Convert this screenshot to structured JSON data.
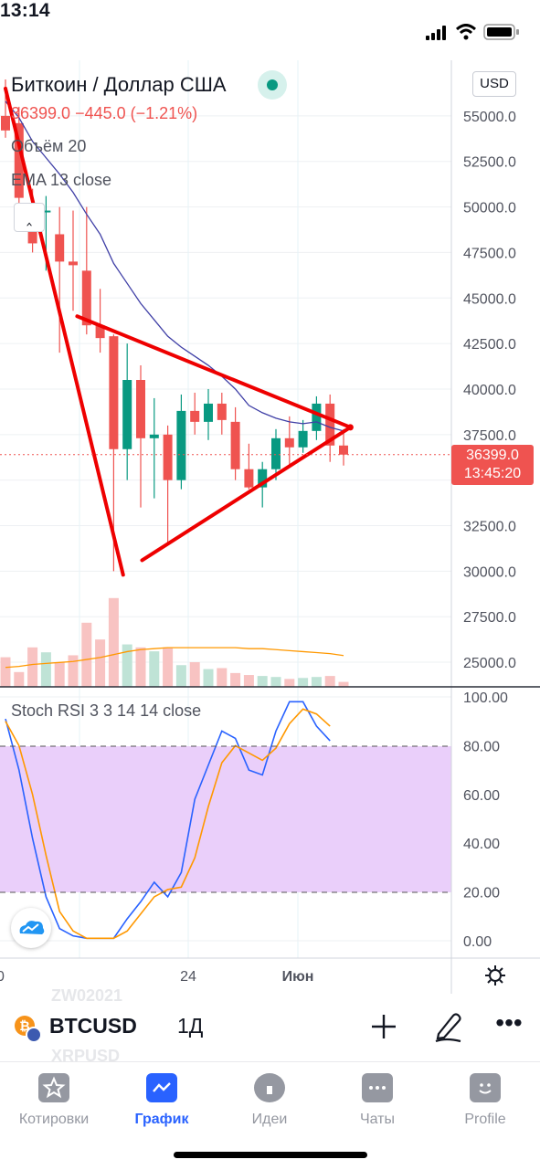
{
  "status_bar": {
    "time": "13:14"
  },
  "header": {
    "title": "Биткоин / Доллар США",
    "price_line": "36399.0  −445.0 (−1.21%)",
    "volume_label": "Объём 20",
    "ema_label": "EMA 13 close",
    "currency": "USD",
    "market_open_color": "#089981"
  },
  "price_tag": {
    "value": "36399.0",
    "countdown": "13:45:20",
    "color": "#ef5350"
  },
  "price_axis_labels": [
    "55000.0",
    "52500.0",
    "50000.0",
    "47500.0",
    "45000.0",
    "42500.0",
    "40000.0",
    "37500.0",
    "32500.0",
    "30000.0",
    "27500.0",
    "25000.0"
  ],
  "stoch": {
    "label": "Stoch RSI 3 3 14 14 close",
    "axis_labels": [
      "100.00",
      "80.00",
      "60.00",
      "40.00",
      "20.00",
      "0.00"
    ]
  },
  "time_axis_labels": [
    "0",
    "24",
    "Июн"
  ],
  "toolbar": {
    "symbol": "BTCUSD",
    "interval": "1Д",
    "bg_symbols": [
      "ZW02021",
      "XRPUSD"
    ]
  },
  "tabs": [
    {
      "label": "Котировки",
      "icon": "star-icon",
      "active": false
    },
    {
      "label": "График",
      "icon": "chart-icon",
      "active": true
    },
    {
      "label": "Идеи",
      "icon": "lightbulb-icon",
      "active": false
    },
    {
      "label": "Чаты",
      "icon": "chat-icon",
      "active": false
    },
    {
      "label": "Profile",
      "icon": "profile-icon",
      "active": false
    }
  ],
  "colors": {
    "up": "#089981",
    "down": "#ef5350",
    "ema": "#3f3fa6",
    "drawing": "#ee0000",
    "stoch_k": "#2962ff",
    "stoch_d": "#ff9800",
    "accent": "#2962ff"
  },
  "chart_data": {
    "type": "candlestick",
    "price_ylim": [
      24000,
      57000
    ],
    "last_price": 36399.0,
    "candles": [
      {
        "o": 55000,
        "h": 57000,
        "l": 53800,
        "c": 54200
      },
      {
        "o": 54600,
        "h": 55500,
        "l": 50000,
        "c": 50500
      },
      {
        "o": 49500,
        "h": 51000,
        "l": 47500,
        "c": 48000
      },
      {
        "o": 49700,
        "h": 50600,
        "l": 46500,
        "c": 49800
      },
      {
        "o": 48500,
        "h": 50000,
        "l": 42000,
        "c": 47000
      },
      {
        "o": 47000,
        "h": 49800,
        "l": 44300,
        "c": 46800
      },
      {
        "o": 46500,
        "h": 50000,
        "l": 43000,
        "c": 43500
      },
      {
        "o": 43500,
        "h": 45500,
        "l": 42000,
        "c": 42800
      },
      {
        "o": 42900,
        "h": 43000,
        "l": 30000,
        "c": 36700
      },
      {
        "o": 36700,
        "h": 42500,
        "l": 35000,
        "c": 40500
      },
      {
        "o": 40500,
        "h": 41300,
        "l": 33500,
        "c": 37300
      },
      {
        "o": 37300,
        "h": 39500,
        "l": 34000,
        "c": 37500
      },
      {
        "o": 37500,
        "h": 38000,
        "l": 31500,
        "c": 35000
      },
      {
        "o": 35000,
        "h": 39700,
        "l": 34500,
        "c": 38800
      },
      {
        "o": 38800,
        "h": 39800,
        "l": 37500,
        "c": 38200
      },
      {
        "o": 38200,
        "h": 40000,
        "l": 37200,
        "c": 39200
      },
      {
        "o": 39200,
        "h": 39800,
        "l": 37500,
        "c": 38300
      },
      {
        "o": 38200,
        "h": 39000,
        "l": 35000,
        "c": 35600
      },
      {
        "o": 35600,
        "h": 37000,
        "l": 34500,
        "c": 34600
      },
      {
        "o": 34600,
        "h": 36000,
        "l": 33500,
        "c": 35600
      },
      {
        "o": 35600,
        "h": 37800,
        "l": 35000,
        "c": 37300
      },
      {
        "o": 37300,
        "h": 38500,
        "l": 35800,
        "c": 36800
      },
      {
        "o": 36800,
        "h": 38300,
        "l": 36500,
        "c": 37700
      },
      {
        "o": 37700,
        "h": 39600,
        "l": 37200,
        "c": 39200
      },
      {
        "o": 39200,
        "h": 39700,
        "l": 36000,
        "c": 36900
      },
      {
        "o": 36900,
        "h": 37800,
        "l": 35800,
        "c": 36400
      }
    ],
    "ema13": [
      55800,
      54900,
      53600,
      52700,
      51800,
      50800,
      49600,
      48500,
      46900,
      45800,
      44700,
      43800,
      42900,
      42300,
      41800,
      41300,
      40700,
      40000,
      39100,
      38700,
      38400,
      38200,
      38100,
      38200,
      37900,
      37700
    ],
    "volume": [
      3,
      1.5,
      4,
      3.5,
      2.5,
      3.2,
      6.5,
      4.8,
      9,
      4.3,
      4,
      3.6,
      4,
      2.2,
      2.5,
      1.8,
      1.9,
      1.4,
      1.2,
      1.1,
      1,
      0.8,
      0.9,
      1,
      1.1,
      0.5
    ],
    "volume_ma": [
      1.6,
      1.7,
      1.9,
      2.0,
      2.1,
      2.2,
      2.4,
      2.6,
      2.9,
      3.2,
      3.4,
      3.5,
      3.6,
      3.6,
      3.6,
      3.6,
      3.6,
      3.6,
      3.5,
      3.5,
      3.4,
      3.3,
      3.2,
      3.1,
      3.0,
      2.8
    ],
    "stoch_k": [
      91,
      70,
      42,
      18,
      5,
      2,
      1,
      1,
      1,
      9,
      16,
      24,
      18,
      28,
      58,
      72,
      86,
      83,
      70,
      68,
      86,
      98,
      98,
      88,
      82
    ],
    "stoch_d": [
      90,
      80,
      60,
      35,
      12,
      4,
      1,
      1,
      1,
      4,
      11,
      18,
      21,
      22,
      34,
      55,
      73,
      80,
      77,
      74,
      79,
      89,
      95,
      93,
      88
    ],
    "stoch_ylim": [
      -6,
      102
    ],
    "stoch_bands": [
      20,
      80
    ],
    "triangle_drawing": {
      "line1": [
        [
          0,
          56500
        ],
        [
          8.7,
          29800
        ]
      ],
      "line2": [
        [
          5.3,
          44000
        ],
        [
          25.5,
          37900
        ]
      ],
      "line3": [
        [
          10.1,
          30600
        ],
        [
          25.5,
          37900
        ]
      ]
    }
  }
}
